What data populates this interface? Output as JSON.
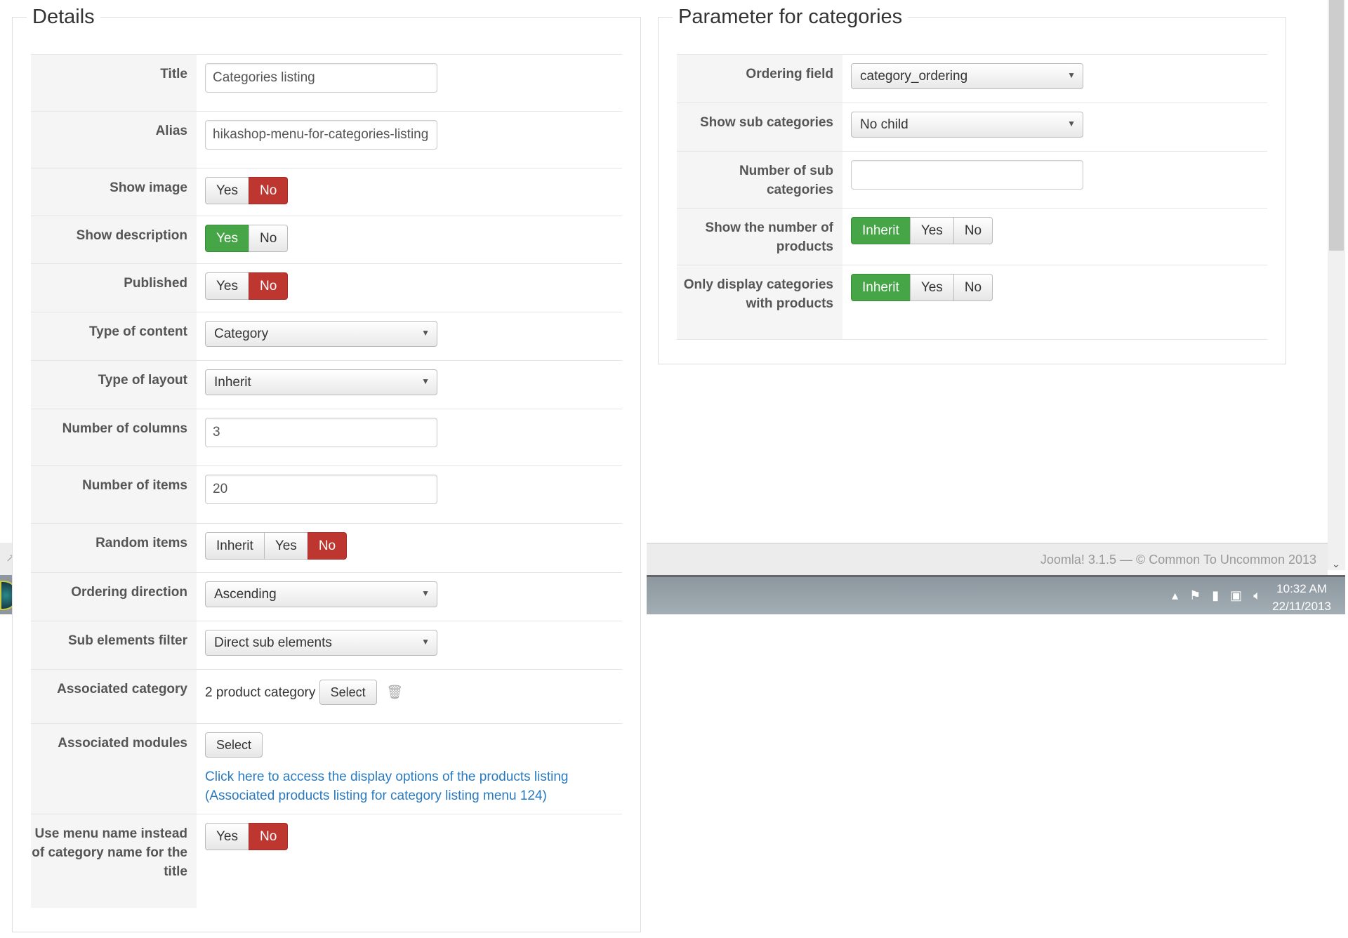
{
  "details": {
    "legend": "Details",
    "rows": [
      {
        "label": "Title",
        "value": "Categories listing"
      },
      {
        "label": "Alias",
        "value": "hikashop-menu-for-categories-listing"
      },
      {
        "label": "Show image",
        "options": [
          "Yes",
          "No"
        ],
        "selected": "No"
      },
      {
        "label": "Show description",
        "options": [
          "Yes",
          "No"
        ],
        "selected": "Yes"
      },
      {
        "label": "Published",
        "options": [
          "Yes",
          "No"
        ],
        "selected": "No"
      },
      {
        "label": "Type of content",
        "value": "Category"
      },
      {
        "label": "Type of layout",
        "value": "Inherit"
      },
      {
        "label": "Number of columns",
        "value": "3"
      },
      {
        "label": "Number of items",
        "value": "20"
      },
      {
        "label": "Random items",
        "options": [
          "Inherit",
          "Yes",
          "No"
        ],
        "selected": "No"
      },
      {
        "label": "Ordering direction",
        "value": "Ascending"
      },
      {
        "label": "Sub elements filter",
        "value": "Direct sub elements"
      },
      {
        "label": "Associated category",
        "value": "2 product category",
        "button": "Select"
      },
      {
        "label": "Associated modules",
        "button": "Select",
        "link1": "Click here to access the display options of the products listing",
        "link2": "(Associated products listing for category listing menu 124)"
      },
      {
        "label": "Use menu name instead of category name for the title",
        "options": [
          "Yes",
          "No"
        ],
        "selected": "No"
      }
    ]
  },
  "params": {
    "legend": "Parameter for categories",
    "rows": [
      {
        "label": "Ordering field",
        "value": "category_ordering"
      },
      {
        "label": "Show sub categories",
        "value": "No child"
      },
      {
        "label": "Number of sub categories",
        "value": ""
      },
      {
        "label": "Show the number of products",
        "options": [
          "Inherit",
          "Yes",
          "No"
        ],
        "selected": "Inherit"
      },
      {
        "label": "Only display categories with products",
        "options": [
          "Inherit",
          "Yes",
          "No"
        ],
        "selected": "Inherit"
      }
    ]
  },
  "footer": {
    "text": "Joomla! 3.1.5 — © Common To Uncommon 2013"
  },
  "taskbar": {
    "time": "10:32 AM",
    "date": "22/11/2013"
  },
  "colors": {
    "yes_active": "#46a546",
    "no_active": "#bd362f",
    "link": "#2a7ac0"
  }
}
